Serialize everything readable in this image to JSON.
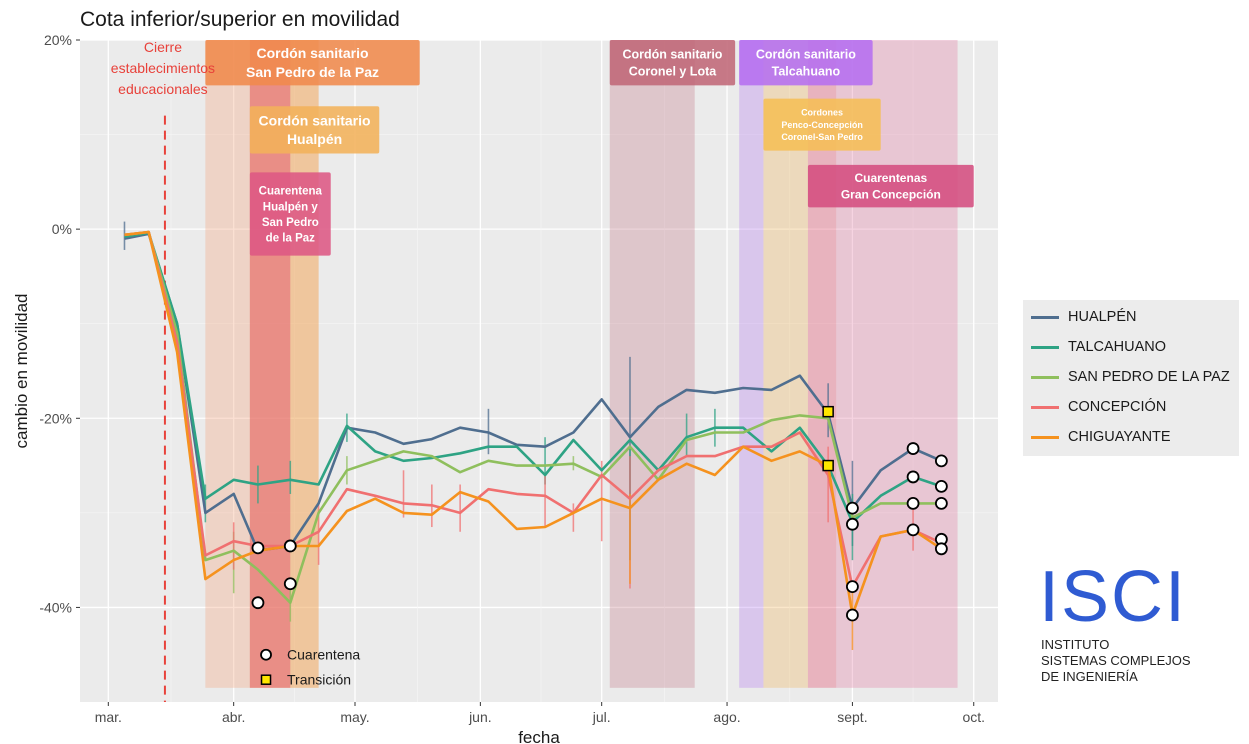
{
  "title": "Cota inferior/superior en movilidad",
  "chart_data": {
    "type": "line",
    "xlabel": "fecha",
    "ylabel": "cambio en movilidad",
    "xlim": [
      "2020-02-23",
      "2020-10-07"
    ],
    "ylim": [
      -50,
      20
    ],
    "x_ticks": [
      {
        "date": "2020-03-01",
        "label": "mar."
      },
      {
        "date": "2020-04-01",
        "label": "abr."
      },
      {
        "date": "2020-05-01",
        "label": "may."
      },
      {
        "date": "2020-06-01",
        "label": "jun."
      },
      {
        "date": "2020-07-01",
        "label": "jul."
      },
      {
        "date": "2020-08-01",
        "label": "ago."
      },
      {
        "date": "2020-09-01",
        "label": "sept."
      },
      {
        "date": "2020-10-01",
        "label": "oct."
      }
    ],
    "y_ticks": [
      {
        "value": 20,
        "label": "20%"
      },
      {
        "value": 0,
        "label": "0%"
      },
      {
        "value": -20,
        "label": "-20%"
      },
      {
        "value": -40,
        "label": "-40%"
      }
    ],
    "grid": true,
    "legend_position": "right",
    "x": [
      "2020-03-05",
      "2020-03-11",
      "2020-03-18",
      "2020-03-25",
      "2020-04-01",
      "2020-04-07",
      "2020-04-15",
      "2020-04-22",
      "2020-04-29",
      "2020-05-06",
      "2020-05-13",
      "2020-05-20",
      "2020-05-27",
      "2020-06-03",
      "2020-06-10",
      "2020-06-17",
      "2020-06-24",
      "2020-07-01",
      "2020-07-08",
      "2020-07-15",
      "2020-07-22",
      "2020-07-29",
      "2020-08-05",
      "2020-08-12",
      "2020-08-19",
      "2020-08-26",
      "2020-09-01",
      "2020-09-08",
      "2020-09-16",
      "2020-09-23"
    ],
    "series": [
      {
        "name": "HUALPÉN",
        "color": "#4f6e8f",
        "values": [
          -1,
          -0.5,
          -10,
          -30,
          -28,
          -34,
          -33.5,
          -29,
          -21,
          -21.5,
          -22.7,
          -22.2,
          -21,
          -21.5,
          -22.8,
          -23,
          -21.5,
          -18,
          -22,
          -18.8,
          -17,
          -17.3,
          -16.8,
          -17,
          -15.5,
          -19.5,
          -29.5,
          -25.5,
          -23.2,
          -24.5
        ],
        "err": [
          [
            -2.2,
            0.8
          ],
          null,
          null,
          null,
          null,
          null,
          null,
          null,
          null,
          null,
          null,
          null,
          null,
          [
            -23.8,
            -19
          ],
          null,
          null,
          null,
          null,
          [
            -28,
            -13.5
          ],
          null,
          null,
          null,
          null,
          null,
          null,
          [
            -22,
            -16.3
          ],
          [
            -33.5,
            -24.5
          ],
          null,
          null,
          null
        ]
      },
      {
        "name": "TALCAHUANO",
        "color": "#2ea384",
        "values": [
          -0.8,
          -0.4,
          -10,
          -28.5,
          -26.5,
          -27,
          -26.5,
          -27,
          -20.8,
          -23.5,
          -24.5,
          -24.2,
          -23.7,
          -23,
          -23,
          -26,
          -22.3,
          -25.5,
          -22.3,
          -25.5,
          -22,
          -21,
          -21,
          -23.5,
          -21,
          -25,
          -31,
          -28.2,
          -26.2,
          -27.2
        ],
        "err": [
          null,
          null,
          null,
          [
            -31,
            -27
          ],
          null,
          [
            -29,
            -25
          ],
          [
            -28,
            -24.5
          ],
          null,
          [
            -22.5,
            -19.5
          ],
          null,
          null,
          null,
          null,
          null,
          null,
          [
            -27,
            -22
          ],
          null,
          null,
          [
            -35,
            -23
          ],
          null,
          [
            -24,
            -19.5
          ],
          [
            -23,
            -19
          ],
          null,
          null,
          null,
          null,
          [
            -35,
            -28
          ],
          null,
          null,
          null
        ]
      },
      {
        "name": "SAN PEDRO DE LA PAZ",
        "color": "#8fbf5d",
        "values": [
          -0.6,
          -0.3,
          -11,
          -35,
          -34,
          -36,
          -39.5,
          -30,
          -25.5,
          -24.5,
          -23.5,
          -24,
          -25.7,
          -24.5,
          -25,
          -25,
          -24.8,
          -26.2,
          -23,
          -26.5,
          -22.3,
          -21.5,
          -21.5,
          -20.2,
          -19.7,
          -20,
          -30.5,
          -29,
          -29,
          -29
        ],
        "err": [
          null,
          null,
          null,
          null,
          [
            -38.5,
            -32
          ],
          null,
          [
            -41.5,
            -37
          ],
          null,
          [
            -27,
            -24
          ],
          null,
          null,
          null,
          null,
          null,
          null,
          null,
          [
            -25.5,
            -24
          ],
          null,
          null,
          null,
          null,
          null,
          null,
          null,
          null,
          null,
          null,
          null,
          null,
          null
        ]
      },
      {
        "name": "CONCEPCIÓN",
        "color": "#f07070",
        "values": [
          -0.6,
          -0.3,
          -12,
          -34.5,
          -33,
          -33.5,
          -33.5,
          -32,
          -27.5,
          -28.2,
          -29,
          -29.2,
          -30,
          -27.5,
          -28,
          -28.2,
          -30,
          -26,
          -28.5,
          -25.5,
          -24,
          -24,
          -23,
          -23,
          -21.5,
          -26,
          -37.8,
          -32.5,
          -31.8,
          -33.2
        ],
        "err": [
          null,
          null,
          null,
          null,
          [
            -36,
            -31
          ],
          null,
          null,
          [
            -35.5,
            -29
          ],
          null,
          null,
          [
            -30.5,
            -25.5
          ],
          [
            -31.5,
            -27
          ],
          [
            -32,
            -27
          ],
          null,
          null,
          [
            -31.5,
            -26
          ],
          [
            -32,
            -29
          ],
          [
            -33,
            -24.5
          ],
          [
            -38,
            -24
          ],
          null,
          null,
          null,
          null,
          null,
          null,
          [
            -31,
            -23
          ],
          null,
          null,
          [
            -34,
            -28.5
          ],
          null
        ]
      },
      {
        "name": "CHIGUAYANTE",
        "color": "#f5921e",
        "values": [
          -0.6,
          -0.3,
          -13,
          -37,
          -35,
          -34,
          -33.5,
          -33.5,
          -29.8,
          -28.5,
          -30,
          -30.2,
          -27.8,
          -28.8,
          -31.7,
          -31.5,
          -30,
          -28.5,
          -29.5,
          -26.5,
          -24.8,
          -26,
          -23,
          -24.5,
          -23.5,
          -25,
          -40.8,
          -32.5,
          -31.8,
          -33.8
        ],
        "err": [
          null,
          null,
          null,
          null,
          null,
          null,
          null,
          null,
          null,
          null,
          null,
          null,
          null,
          null,
          null,
          null,
          null,
          null,
          [
            -37.5,
            -28
          ],
          null,
          null,
          null,
          null,
          null,
          null,
          null,
          [
            -44.5,
            -38
          ],
          null,
          null,
          null
        ]
      }
    ],
    "markers": [
      {
        "shape": "circle",
        "date": "2020-04-07",
        "value": -33.7
      },
      {
        "shape": "circle",
        "date": "2020-04-07",
        "value": -39.5
      },
      {
        "shape": "circle",
        "date": "2020-04-15",
        "value": -33.5
      },
      {
        "shape": "circle",
        "date": "2020-04-15",
        "value": -37.5
      },
      {
        "shape": "circle",
        "date": "2020-09-01",
        "value": -29.5
      },
      {
        "shape": "circle",
        "date": "2020-09-01",
        "value": -31.2
      },
      {
        "shape": "circle",
        "date": "2020-09-01",
        "value": -37.8
      },
      {
        "shape": "circle",
        "date": "2020-09-01",
        "value": -40.8
      },
      {
        "shape": "circle",
        "date": "2020-09-16",
        "value": -23.2
      },
      {
        "shape": "circle",
        "date": "2020-09-16",
        "value": -26.2
      },
      {
        "shape": "circle",
        "date": "2020-09-16",
        "value": -29
      },
      {
        "shape": "circle",
        "date": "2020-09-16",
        "value": -31.8
      },
      {
        "shape": "circle",
        "date": "2020-09-23",
        "value": -24.5
      },
      {
        "shape": "circle",
        "date": "2020-09-23",
        "value": -27.2
      },
      {
        "shape": "circle",
        "date": "2020-09-23",
        "value": -29
      },
      {
        "shape": "circle",
        "date": "2020-09-23",
        "value": -32.8
      },
      {
        "shape": "circle",
        "date": "2020-09-23",
        "value": -33.8
      },
      {
        "shape": "square",
        "date": "2020-08-26",
        "value": -19.3
      },
      {
        "shape": "square",
        "date": "2020-08-26",
        "value": -25
      }
    ],
    "marker_legend": [
      {
        "shape": "circle",
        "label": "Cuarentena"
      },
      {
        "shape": "square",
        "label": "Transición"
      }
    ],
    "annotations": {
      "vline": {
        "date": "2020-03-15",
        "color": "#e8413a",
        "label_lines": [
          "Cierre",
          "establecimientos",
          "educacionales"
        ]
      },
      "bands": [
        {
          "start": "2020-03-25",
          "end": "2020-04-22",
          "color": "#f4a582",
          "opacity": 0.35
        },
        {
          "start": "2020-04-05",
          "end": "2020-04-22",
          "color": "#f0b050",
          "opacity": 0.35
        },
        {
          "start": "2020-04-05",
          "end": "2020-04-15",
          "color": "#e24a6a",
          "opacity": 0.45
        },
        {
          "start": "2020-07-03",
          "end": "2020-07-24",
          "color": "#c07080",
          "opacity": 0.3
        },
        {
          "start": "2020-08-04",
          "end": "2020-08-10",
          "color": "#b070ee",
          "opacity": 0.3
        },
        {
          "start": "2020-08-10",
          "end": "2020-08-21",
          "color": "#f0b050",
          "opacity": 0.3
        },
        {
          "start": "2020-08-21",
          "end": "2020-08-28",
          "color": "#e24a6a",
          "opacity": 0.35
        },
        {
          "start": "2020-08-28",
          "end": "2020-09-27",
          "color": "#e0709a",
          "opacity": 0.3
        }
      ],
      "labels": [
        {
          "date": "2020-03-25",
          "end": "2020-05-17",
          "top": 20,
          "bottom": 15.2,
          "color": "#f08a4c",
          "lines": [
            "Cordón sanitario",
            "San Pedro de la Paz"
          ],
          "size": 14
        },
        {
          "date": "2020-04-05",
          "end": "2020-05-07",
          "top": 13,
          "bottom": 8,
          "color": "#f3b25a",
          "lines": [
            "Cordón sanitario",
            "Hualpén"
          ],
          "size": 14
        },
        {
          "date": "2020-04-05",
          "end": "2020-04-25",
          "top": 6,
          "bottom": -2.8,
          "color": "#dd5884",
          "lines": [
            "Cuarentena",
            "Hualpén y",
            "San Pedro",
            "de la Paz"
          ],
          "size": 11.5
        },
        {
          "date": "2020-07-03",
          "end": "2020-08-03",
          "top": 20,
          "bottom": 15.2,
          "color": "#c06878",
          "lines": [
            "Cordón sanitario",
            "Coronel y Lota"
          ],
          "size": 12.5
        },
        {
          "date": "2020-08-04",
          "end": "2020-09-06",
          "top": 20,
          "bottom": 15.2,
          "color": "#b56ef0",
          "lines": [
            "Cordón sanitario",
            "Talcahuano"
          ],
          "size": 12.5
        },
        {
          "date": "2020-08-10",
          "end": "2020-09-08",
          "top": 13.8,
          "bottom": 8.3,
          "color": "#f5be55",
          "lines": [
            "Cordones",
            "Penco-Concepción",
            "Coronel-San Pedro"
          ],
          "size": 9
        },
        {
          "date": "2020-08-21",
          "end": "2020-10-01",
          "top": 6.8,
          "bottom": 2.3,
          "color": "#d44d7f",
          "lines": [
            "Cuarentenas",
            "Gran Concepción"
          ],
          "size": 12
        }
      ]
    }
  },
  "legend": [
    {
      "label": "HUALPÉN",
      "color": "#4f6e8f"
    },
    {
      "label": "TALCAHUANO",
      "color": "#2ea384"
    },
    {
      "label": "SAN PEDRO DE LA PAZ",
      "color": "#8fbf5d"
    },
    {
      "label": "CONCEPCIÓN",
      "color": "#f07070"
    },
    {
      "label": "CHIGUAYANTE",
      "color": "#f5921e"
    }
  ],
  "logo": {
    "big": "ISCI",
    "line1": "INSTITUTO",
    "line2": "SISTEMAS COMPLEJOS",
    "line3": "DE INGENIERÍA",
    "color": "#2f5bd2"
  }
}
